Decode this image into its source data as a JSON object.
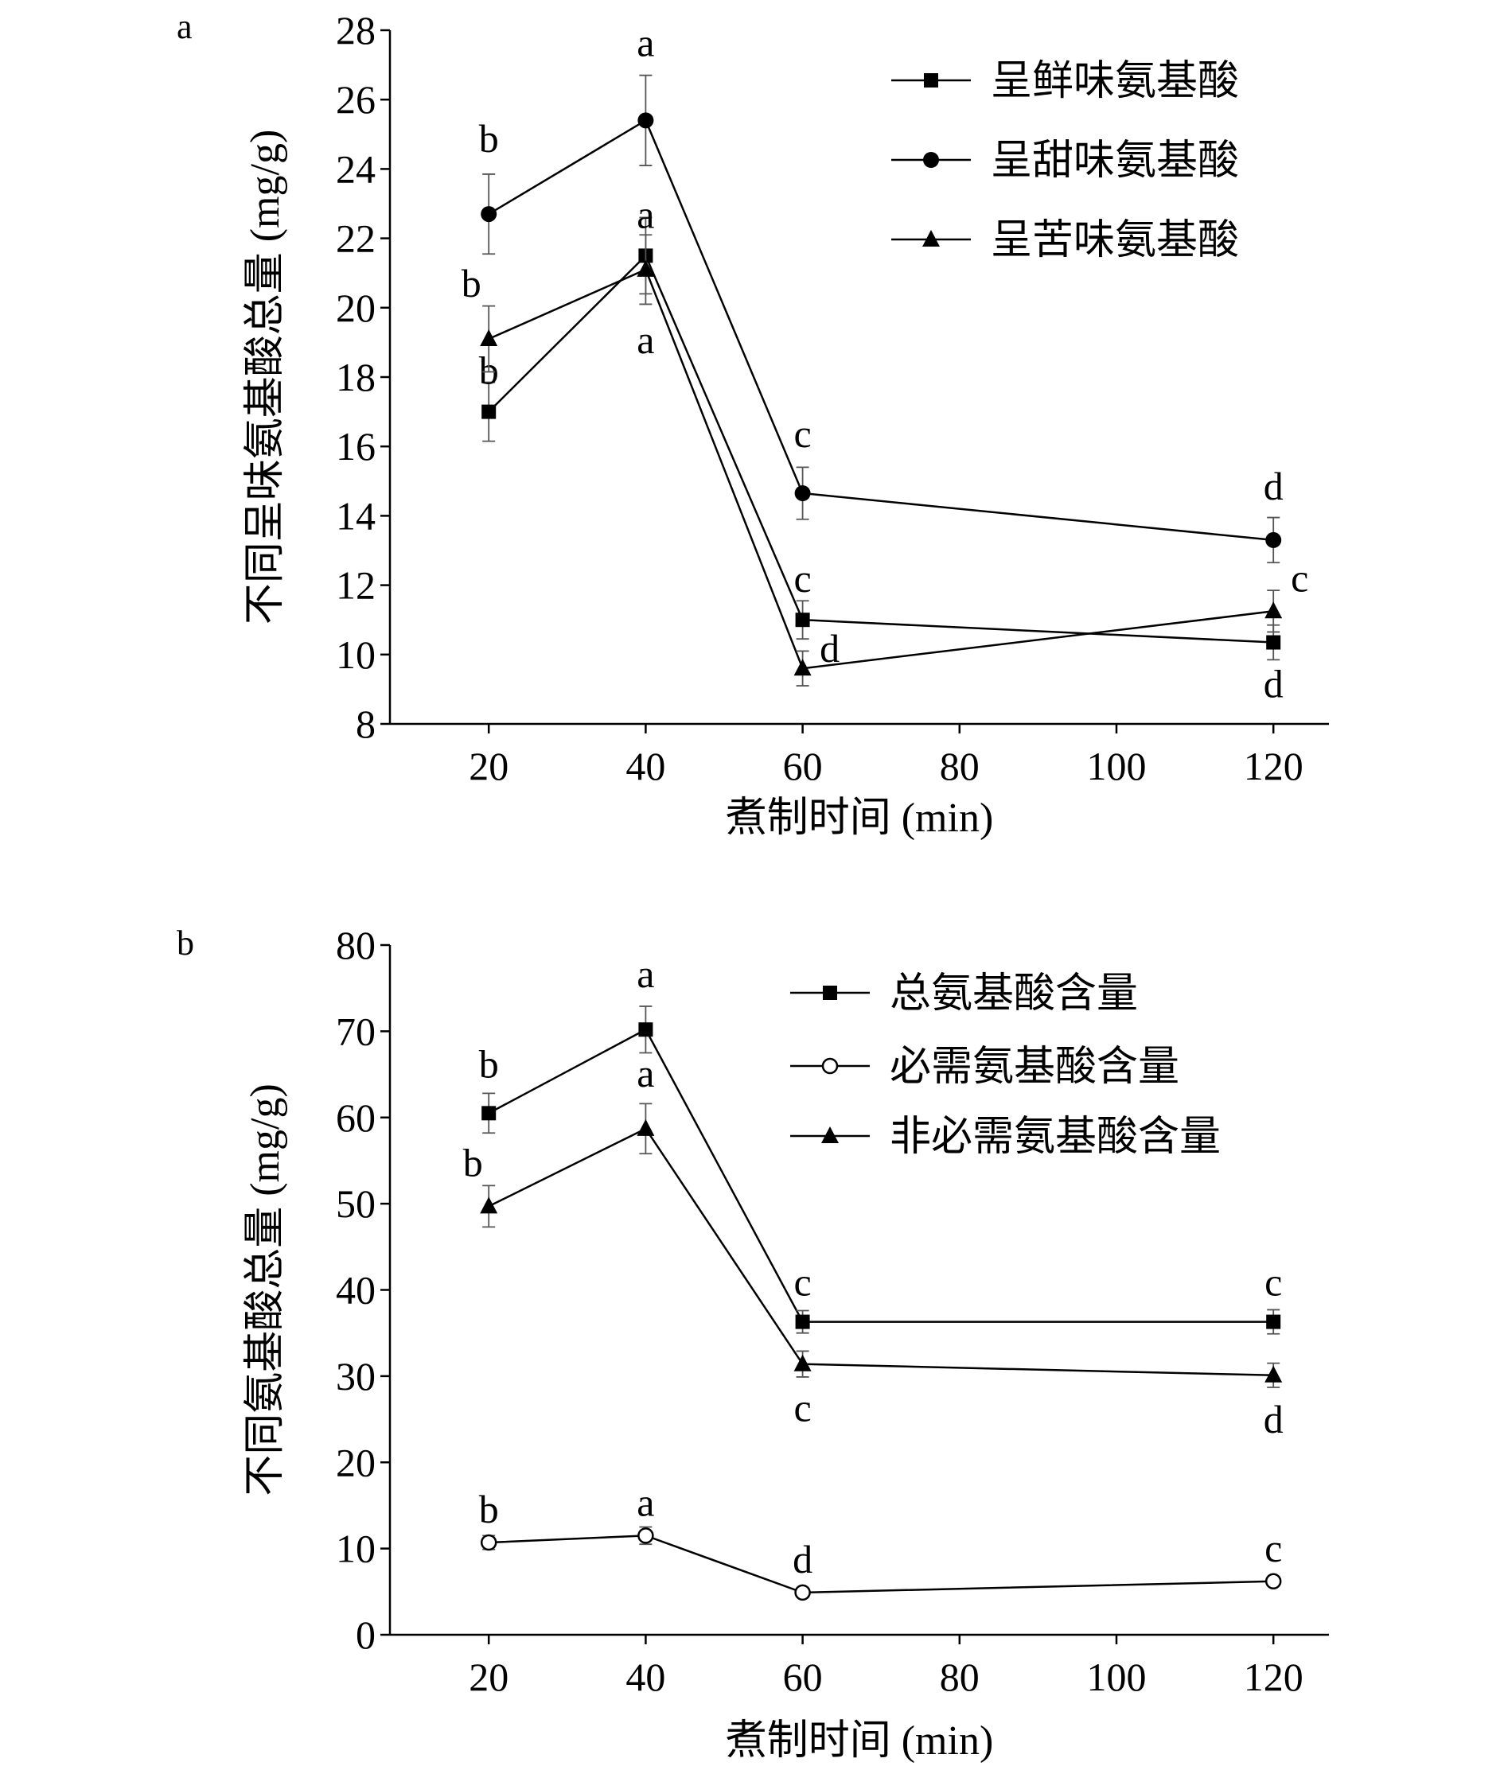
{
  "chart_data": [
    {
      "panel_label": "a",
      "type": "line",
      "xlabel": "煮制时间 (min)",
      "ylabel": "不同呈味氨基酸总量 (mg/g)",
      "ylim": [
        8,
        28
      ],
      "y_ticks": [
        "8",
        "10",
        "12",
        "14",
        "16",
        "18",
        "20",
        "22",
        "24",
        "26",
        "28"
      ],
      "x_ticks": [
        "20",
        "40",
        "60",
        "80",
        "100",
        "120"
      ],
      "x": [
        20,
        40,
        60,
        120
      ],
      "legend_position": "top-right",
      "series": [
        {
          "name": "呈鲜味氨基酸",
          "marker": "square",
          "values": [
            17.0,
            21.5,
            11.0,
            10.35
          ],
          "errors": [
            0.85,
            1.1,
            0.55,
            0.5
          ],
          "labels": [
            "b",
            "a",
            "c",
            "d"
          ]
        },
        {
          "name": "呈甜味氨基酸",
          "marker": "circle",
          "values": [
            22.7,
            25.4,
            14.65,
            13.3
          ],
          "errors": [
            1.15,
            1.3,
            0.75,
            0.65
          ],
          "labels": [
            "b",
            "a",
            "c",
            "d"
          ]
        },
        {
          "name": "呈苦味氨基酸",
          "marker": "triangle",
          "values": [
            19.1,
            21.1,
            9.6,
            11.25
          ],
          "errors": [
            0.95,
            1.0,
            0.5,
            0.6
          ],
          "labels": [
            "b",
            "a",
            "d",
            "c"
          ]
        }
      ]
    },
    {
      "panel_label": "b",
      "type": "line",
      "xlabel": "煮制时间 (min)",
      "ylabel": "不同氨基酸总量 (mg/g)",
      "ylim": [
        0,
        80
      ],
      "y_ticks": [
        "0",
        "10",
        "20",
        "30",
        "40",
        "50",
        "60",
        "70",
        "80"
      ],
      "x_ticks": [
        "20",
        "40",
        "60",
        "80",
        "100",
        "120"
      ],
      "x": [
        20,
        40,
        60,
        120
      ],
      "legend_position": "top-right",
      "series": [
        {
          "name": "总氨基酸含量",
          "marker": "square",
          "values": [
            60.5,
            70.2,
            36.3,
            36.3
          ],
          "errors": [
            2.3,
            2.7,
            1.3,
            1.4
          ],
          "labels": [
            "b",
            "a",
            "c",
            "c"
          ]
        },
        {
          "name": "必需氨基酸含量",
          "marker": "circle-open",
          "values": [
            10.7,
            11.5,
            4.9,
            6.2
          ],
          "errors": [
            0.8,
            1.0,
            0.5,
            0.5
          ],
          "labels": [
            "b",
            "a",
            "d",
            "c"
          ]
        },
        {
          "name": "非必需氨基酸含量",
          "marker": "triangle",
          "values": [
            49.7,
            58.7,
            31.4,
            30.1
          ],
          "errors": [
            2.4,
            2.9,
            1.5,
            1.4
          ],
          "labels": [
            "b",
            "a",
            "c",
            "d"
          ]
        }
      ]
    }
  ]
}
